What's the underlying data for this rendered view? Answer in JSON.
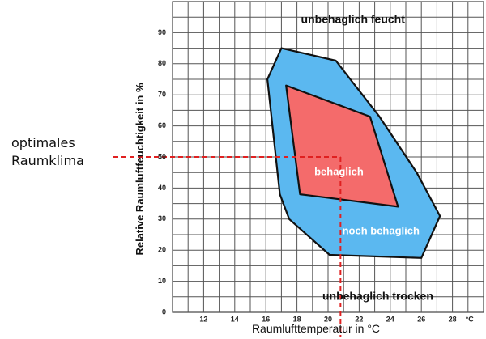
{
  "chart_data": {
    "type": "area",
    "xlabel": "Raumlufttemperatur in °C",
    "ylabel": "Relative Raumluftfeuchtigkeit in %",
    "x_ticks": [
      12,
      14,
      16,
      18,
      20,
      22,
      24,
      26,
      28
    ],
    "x_unit_tick": "°C",
    "y_ticks": [
      0,
      10,
      20,
      30,
      40,
      50,
      60,
      70,
      80,
      90
    ],
    "xlim": [
      10,
      30
    ],
    "ylim": [
      0,
      100
    ],
    "grid": true,
    "regions": [
      {
        "label": "noch behaglich",
        "color": "#5bb8f0",
        "points": [
          [
            16.1,
            75
          ],
          [
            17.0,
            85
          ],
          [
            20.5,
            81
          ],
          [
            23.3,
            63
          ],
          [
            25.7,
            45
          ],
          [
            27.2,
            31
          ],
          [
            26.0,
            17.5
          ],
          [
            20.1,
            18.5
          ],
          [
            17.5,
            30
          ],
          [
            16.9,
            38
          ]
        ]
      },
      {
        "label": "behaglich",
        "color": "#f46b6b",
        "points": [
          [
            17.3,
            73
          ],
          [
            22.7,
            63
          ],
          [
            24.5,
            34
          ],
          [
            18.2,
            38
          ]
        ]
      }
    ],
    "zone_labels": [
      {
        "text": "unbehaglich feucht",
        "x": 21.6,
        "y": 94
      },
      {
        "text": "behaglich",
        "x": 20.7,
        "y": 45
      },
      {
        "text": "noch behaglich",
        "x": 23.4,
        "y": 26
      },
      {
        "text": "unbehaglich trocken",
        "x": 23.2,
        "y": 5
      }
    ],
    "reference": {
      "x": 20.8,
      "y": 50,
      "label_lines": [
        "optimales",
        "Raumklima"
      ],
      "color": "#e02020"
    }
  }
}
